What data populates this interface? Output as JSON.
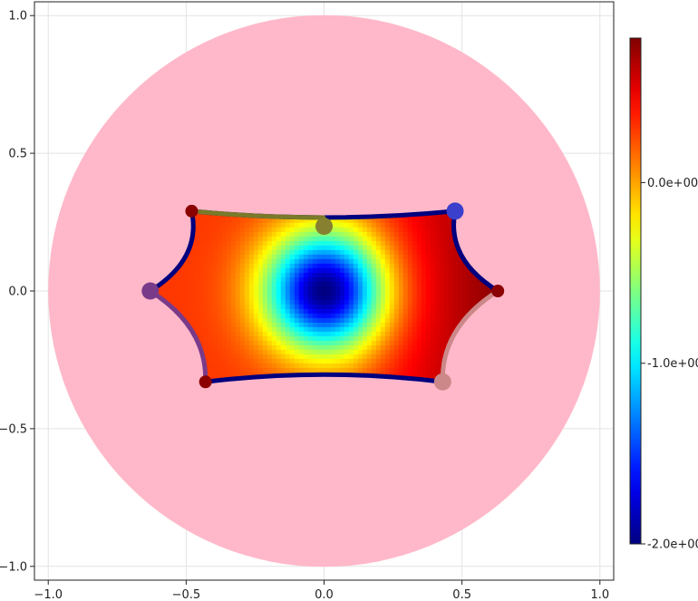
{
  "chart_data": {
    "type": "heatmap",
    "title": "",
    "xlabel": "",
    "ylabel": "",
    "xlim": [
      -1.05,
      1.05
    ],
    "ylim": [
      -1.05,
      1.05
    ],
    "grid": true,
    "x_ticks": [
      -1.0,
      -0.5,
      0.0,
      0.5,
      1.0
    ],
    "x_tick_labels": [
      "−1.0",
      "−0.5",
      "0.0",
      "0.5",
      "1.0"
    ],
    "y_ticks": [
      -1.0,
      -0.5,
      0.0,
      0.5,
      1.0
    ],
    "y_tick_labels": [
      "−1.0",
      "−0.5",
      "0.0",
      "0.5",
      "1.0"
    ],
    "disk": {
      "center": [
        0,
        0
      ],
      "radius": 1.0,
      "color": "#ffb8c9"
    },
    "colorbar": {
      "colormap": "jet",
      "range": [
        -2.0,
        0.8
      ],
      "ticks": [
        0.0,
        -1.0,
        -2.0
      ],
      "tick_labels": [
        "0.0e+00",
        "-1.0e+00",
        "-2.0e+00"
      ]
    },
    "field_minimum": {
      "x": 0.0,
      "y": 0.0,
      "value": -2.0
    },
    "boundary_vertices": [
      {
        "x": -0.48,
        "y": 0.29,
        "color": "#8b0000"
      },
      {
        "x": 0.475,
        "y": 0.29,
        "color": "#3a40cc"
      },
      {
        "x": 0.63,
        "y": 0.0,
        "color": "#8b0000"
      },
      {
        "x": 0.43,
        "y": -0.33,
        "color": "#cc8888"
      },
      {
        "x": -0.43,
        "y": -0.33,
        "color": "#8b0000"
      },
      {
        "x": -0.63,
        "y": 0.0,
        "color": "#7a3a8a"
      }
    ],
    "edge_midpoints": [
      {
        "x": 0.0,
        "y": 0.235,
        "color": "#868030"
      }
    ],
    "edge_colors": {
      "top_left_half": "#7a7a2a",
      "default": "#00007f",
      "lower_left": "#7a3a8a",
      "lower_right": "#cc8888"
    }
  }
}
